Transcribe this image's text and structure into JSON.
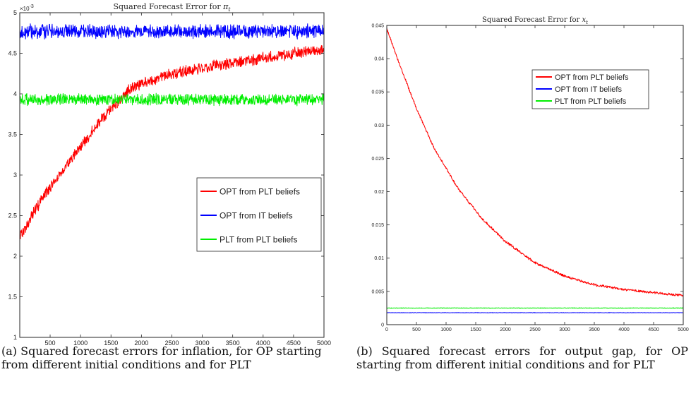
{
  "charts": [
    {
      "title_prefix": "Squared Forecast Error for ",
      "title_symbol": "π",
      "title_sub": "t",
      "caption": "(a) Squared forecast errors for inflation, for OP starting from different initial conditions and for PLT"
    },
    {
      "title_prefix": "Squared Forecast Error for ",
      "title_symbol": "x",
      "title_sub": "t",
      "caption": "(b) Squared forecast errors for output gap, for OP starting from different initial conditions and for PLT"
    }
  ],
  "chart_data": [
    {
      "type": "line",
      "title": "Squared Forecast Error for π_t",
      "xlim": [
        1,
        5000
      ],
      "ylim": [
        0.001,
        0.005
      ],
      "y_exponent_label": "×10",
      "y_exponent_power": "-3",
      "xticks": [
        500,
        1000,
        1500,
        2000,
        2500,
        3000,
        3500,
        4000,
        4500,
        5000
      ],
      "xtick_labels": [
        "500",
        "1000",
        "1500",
        "2000",
        "2500",
        "3000",
        "3500",
        "4000",
        "4500",
        "5000"
      ],
      "yticks": [
        0.001,
        0.0015,
        0.002,
        0.0025,
        0.003,
        0.0035,
        0.004,
        0.0045,
        0.005
      ],
      "ytick_labels": [
        "1",
        "1.5",
        "2",
        "2.5",
        "3",
        "3.5",
        "4",
        "4.5",
        "5"
      ],
      "legend_position": "center-right",
      "legend_spaced": true,
      "series": [
        {
          "name": "OPT from PLT beliefs",
          "color": "#ff0000",
          "noise": 8e-05,
          "start": 0.00145,
          "x": [
            1,
            60,
            200,
            400,
            700,
            1000,
            1300,
            1600,
            1800,
            2100,
            2500,
            3000,
            3500,
            4000,
            4500,
            5000
          ],
          "y": [
            0.00225,
            0.0023,
            0.0025,
            0.00275,
            0.00305,
            0.00335,
            0.00365,
            0.0039,
            0.00405,
            0.00415,
            0.00425,
            0.00432,
            0.00438,
            0.00444,
            0.0045,
            0.00455
          ]
        },
        {
          "name": "OPT from IT beliefs",
          "color": "#0000ff",
          "noise": 0.0001,
          "x": [
            1,
            5000
          ],
          "y": [
            0.00477,
            0.00477
          ]
        },
        {
          "name": "PLT from PLT beliefs",
          "color": "#00ee00",
          "noise": 8e-05,
          "x": [
            1,
            5000
          ],
          "y": [
            0.00393,
            0.00393
          ]
        }
      ]
    },
    {
      "type": "line",
      "title": "Squared Forecast Error for x_t",
      "xlim": [
        0,
        5000
      ],
      "ylim": [
        0,
        0.045
      ],
      "xticks": [
        0,
        500,
        1000,
        1500,
        2000,
        2500,
        3000,
        3500,
        4000,
        4500,
        5000
      ],
      "xtick_labels": [
        "0",
        "500",
        "1000",
        "1500",
        "2000",
        "2500",
        "3000",
        "3500",
        "4000",
        "4500",
        "5000"
      ],
      "yticks": [
        0,
        0.005,
        0.01,
        0.015,
        0.02,
        0.025,
        0.03,
        0.035,
        0.04,
        0.045
      ],
      "ytick_labels": [
        "0",
        "0.005",
        "0.01",
        "0.015",
        "0.02",
        "0.025",
        "0.03",
        "0.035",
        "0.04",
        "0.045"
      ],
      "legend_position": "top-right",
      "legend_spaced": false,
      "series": [
        {
          "name": "OPT from PLT beliefs",
          "color": "#ff0000",
          "noise": 0.00022,
          "start": 0.024,
          "x": [
            1,
            40,
            200,
            500,
            800,
            1200,
            1600,
            2000,
            2500,
            3000,
            3500,
            4000,
            4500,
            5000
          ],
          "y": [
            0.0445,
            0.0435,
            0.0395,
            0.0325,
            0.0265,
            0.0205,
            0.016,
            0.0125,
            0.0093,
            0.0073,
            0.006,
            0.0053,
            0.0048,
            0.0044
          ]
        },
        {
          "name": "OPT from IT beliefs",
          "color": "#0000ff",
          "noise": 4e-05,
          "x": [
            0,
            5000
          ],
          "y": [
            0.0018,
            0.0018
          ]
        },
        {
          "name": "PLT from PLT beliefs",
          "color": "#00ee00",
          "noise": 5e-05,
          "x": [
            0,
            5000
          ],
          "y": [
            0.0025,
            0.0025
          ]
        }
      ]
    }
  ]
}
